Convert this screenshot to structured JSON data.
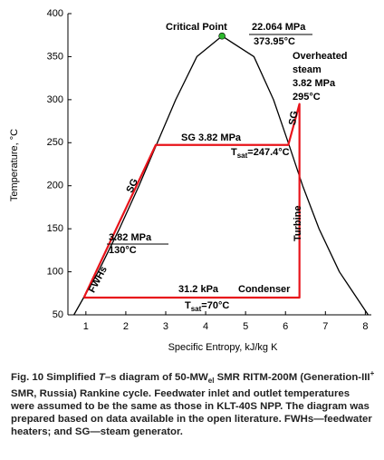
{
  "chart_data": {
    "type": "line",
    "xlabel": "Specific Entropy, kJ/kg K",
    "ylabel": "Temperature, °C",
    "xlim": [
      0.55,
      8.15
    ],
    "ylim": [
      50,
      400
    ],
    "xticks": [
      1,
      2,
      3,
      4,
      5,
      6,
      7,
      8
    ],
    "yticks": [
      50,
      100,
      150,
      200,
      250,
      300,
      350,
      400
    ],
    "grid": false,
    "series": [
      {
        "color": "#000000",
        "x": [
          0.7,
          1.31,
          1.84,
          2.33,
          2.79,
          3.25,
          3.78,
          4.41,
          5.21,
          5.7,
          6.07,
          6.43,
          6.84,
          7.35,
          8.07
        ],
        "values": [
          50,
          100,
          150,
          200,
          250,
          300,
          350,
          373.95,
          350,
          300,
          250,
          200,
          150,
          100,
          50
        ]
      },
      {
        "color": "#e8141b",
        "x": [
          0.95,
          2.75,
          6.07,
          6.35,
          6.35,
          0.95
        ],
        "values": [
          70,
          247.4,
          247.4,
          295,
          70,
          70
        ]
      }
    ],
    "critical_point": {
      "x": 4.41,
      "y": 373.95,
      "color": "#2db82d"
    },
    "annotations": [
      "Critical Point",
      "22.064 MPa",
      "373.95°C",
      "Overheated",
      "steam",
      "3.82 MPa",
      "295°C",
      "SG",
      "SG  3.82 MPa",
      "SG",
      "3.82 MPa",
      "130°C",
      "FWHs",
      "Turbine",
      "31.2 kPa",
      "Condenser"
    ],
    "tsat_labels": [
      [
        "T",
        "sat",
        "=247.4°C"
      ],
      [
        "T",
        "sat",
        "=70°C"
      ]
    ]
  },
  "caption": [
    "Fig. 10  Simplified ",
    "T",
    "–s diagram of 50-MW",
    "el",
    " SMR RITM-200M (Generation-III",
    "+",
    " SMR, Russia) Rankine cycle. Feedwater inlet and outlet temperatures were assumed to be the same as those in KLT-40S NPP. The diagram was prepared based on data available in the open literature. FWHs—feedwater heaters; and SG—steam generator."
  ]
}
